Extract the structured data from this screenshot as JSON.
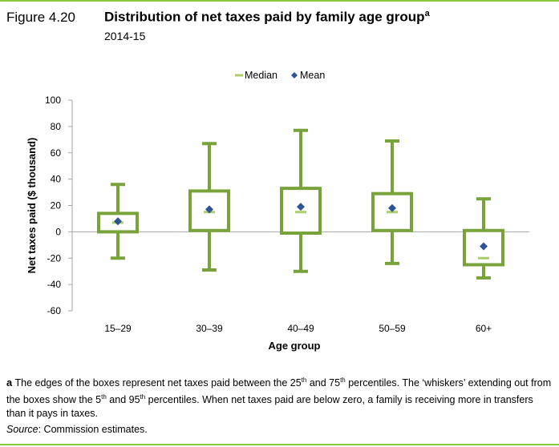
{
  "figure": {
    "label": "Figure 4.20",
    "title": "Distribution of net taxes paid by family age group",
    "title_note_marker": "a",
    "subtitle": "2014-15"
  },
  "chart_data": {
    "type": "box",
    "xlabel": "Age group",
    "ylabel": "Net taxes paid ($ thousand)",
    "ylim": [
      -60,
      100
    ],
    "yticks": [
      100,
      80,
      60,
      40,
      20,
      0,
      -20,
      -40,
      -60
    ],
    "categories": [
      "15–29",
      "30–39",
      "40–49",
      "50–59",
      "60+"
    ],
    "p5": [
      -20,
      -29,
      -30,
      -24,
      -35
    ],
    "p25": [
      0,
      1,
      -1,
      1,
      -25
    ],
    "median": [
      7,
      15,
      15,
      15,
      -20
    ],
    "mean": [
      8,
      17,
      19,
      18,
      -11
    ],
    "p75": [
      14,
      31,
      33,
      29,
      1
    ],
    "p95": [
      36,
      67,
      77,
      69,
      25
    ],
    "legend": [
      "Median",
      "Mean"
    ],
    "legend_position": "top",
    "colors": {
      "box": "#77a33a",
      "median": "#a9cf6b",
      "mean": "#2f5496",
      "axis": "#a6a6a6"
    }
  },
  "note": {
    "marker": "a",
    "text_1": " The edges of the boxes represent net taxes paid between the 25",
    "sup_1": "th",
    "text_2": " and 75",
    "sup_2": "th",
    "text_3": " percentiles. The ‘whiskers’ extending out from the boxes show the 5",
    "sup_3": "th",
    "text_4": " and 95",
    "sup_4": "th",
    "text_5": " percentiles. When net taxes paid are below zero, a family is receiving more in transfers than it pays in taxes."
  },
  "source": {
    "label": "Source",
    "text": ": Commission estimates."
  }
}
